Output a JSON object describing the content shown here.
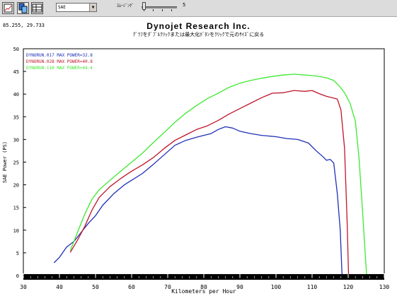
{
  "toolbar": {
    "buttons": [
      {
        "name": "graph-view-button",
        "icon": "graph-icon"
      },
      {
        "name": "copy-button",
        "icon": "copy-icon"
      },
      {
        "name": "table-view-button",
        "icon": "table-icon"
      }
    ],
    "correction_select": {
      "value": "SAE"
    },
    "smoothing_label": "ｽﾑｰｼﾞﾝｸﾞ",
    "smoothing_value": "5",
    "smoothing_fraction": 0.0
  },
  "cursor_readout": "85.255, 29.733",
  "chart_data": {
    "type": "line",
    "title": "Dynojet   Research   Inc.",
    "subtitle": "ｸﾞﾗﾌをﾀﾞﾌﾞﾙｸﾘｯｸまたは最大化ﾎﾞﾀﾝをｸﾘｯｸで元のｻｲｽﾞに戻る",
    "xlabel": "Kilometers per Hour",
    "ylabel": "SAE Power (PS)",
    "xlim": [
      30,
      130
    ],
    "ylim": [
      0,
      50
    ],
    "xticks": [
      30,
      40,
      50,
      60,
      70,
      80,
      90,
      100,
      110,
      120,
      130
    ],
    "yticks": [
      0,
      5,
      10,
      15,
      20,
      25,
      30,
      35,
      40,
      45,
      50
    ],
    "legend_position": "top-left",
    "grid": false,
    "series": [
      {
        "name": "DYNORUN.017  MAX POWER=32.8",
        "color": "#1e2fb8",
        "points": [
          [
            38.5,
            2.8
          ],
          [
            40,
            4.0
          ],
          [
            42,
            6.3
          ],
          [
            44,
            7.5
          ],
          [
            46,
            9.5
          ],
          [
            48,
            11.5
          ],
          [
            50,
            13.2
          ],
          [
            52,
            15.5
          ],
          [
            55,
            18.0
          ],
          [
            58,
            20.0
          ],
          [
            60,
            21.0
          ],
          [
            63,
            22.5
          ],
          [
            66,
            24.5
          ],
          [
            69,
            26.6
          ],
          [
            72,
            28.7
          ],
          [
            75,
            29.8
          ],
          [
            78,
            30.5
          ],
          [
            80,
            30.9
          ],
          [
            82,
            31.3
          ],
          [
            84,
            32.2
          ],
          [
            86,
            32.8
          ],
          [
            88,
            32.5
          ],
          [
            90,
            31.8
          ],
          [
            93,
            31.3
          ],
          [
            96,
            30.9
          ],
          [
            100,
            30.6
          ],
          [
            103,
            30.2
          ],
          [
            106,
            30.0
          ],
          [
            109,
            29.2
          ],
          [
            111,
            27.6
          ],
          [
            113,
            26.2
          ],
          [
            114,
            25.4
          ],
          [
            115,
            25.6
          ],
          [
            116,
            24.8
          ],
          [
            117,
            18.0
          ],
          [
            117.8,
            10.0
          ],
          [
            118.3,
            0.2
          ]
        ]
      },
      {
        "name": "DYNORUN.028  MAX POWER=40.8",
        "color": "#c0152a",
        "points": [
          [
            43,
            5.1
          ],
          [
            45,
            7.8
          ],
          [
            47,
            10.8
          ],
          [
            49,
            14.4
          ],
          [
            51,
            17.2
          ],
          [
            54,
            19.6
          ],
          [
            57,
            21.4
          ],
          [
            60,
            23.0
          ],
          [
            63,
            24.4
          ],
          [
            66,
            26.0
          ],
          [
            69,
            28.0
          ],
          [
            72,
            29.8
          ],
          [
            75,
            31.0
          ],
          [
            78,
            32.2
          ],
          [
            81,
            33.0
          ],
          [
            84,
            34.2
          ],
          [
            87,
            35.6
          ],
          [
            90,
            36.8
          ],
          [
            93,
            38.0
          ],
          [
            96,
            39.2
          ],
          [
            99,
            40.2
          ],
          [
            102,
            40.3
          ],
          [
            105,
            40.8
          ],
          [
            108,
            40.6
          ],
          [
            110,
            40.8
          ],
          [
            112,
            40.1
          ],
          [
            114,
            39.5
          ],
          [
            115.5,
            39.2
          ],
          [
            117,
            38.9
          ],
          [
            118,
            36.5
          ],
          [
            119,
            28.0
          ],
          [
            119.7,
            12.0
          ],
          [
            120.1,
            0.3
          ]
        ]
      },
      {
        "name": "DYNORUN.110  MAX POWER=44.4",
        "color": "#3ee82e",
        "points": [
          [
            43,
            5.5
          ],
          [
            45,
            9.5
          ],
          [
            47,
            13.5
          ],
          [
            49,
            16.8
          ],
          [
            51,
            18.9
          ],
          [
            54,
            21.0
          ],
          [
            57,
            23.0
          ],
          [
            60,
            25.0
          ],
          [
            63,
            27.0
          ],
          [
            66,
            29.3
          ],
          [
            69,
            31.5
          ],
          [
            72,
            33.8
          ],
          [
            75,
            35.8
          ],
          [
            78,
            37.5
          ],
          [
            81,
            39.0
          ],
          [
            84,
            40.2
          ],
          [
            87,
            41.5
          ],
          [
            90,
            42.4
          ],
          [
            93,
            43.0
          ],
          [
            96,
            43.5
          ],
          [
            99,
            43.9
          ],
          [
            102,
            44.2
          ],
          [
            105,
            44.4
          ],
          [
            108,
            44.2
          ],
          [
            111,
            44.0
          ],
          [
            114,
            43.6
          ],
          [
            116,
            43.0
          ],
          [
            117.5,
            41.8
          ],
          [
            119,
            40.3
          ],
          [
            120.5,
            38.0
          ],
          [
            122,
            34.0
          ],
          [
            123,
            26.0
          ],
          [
            124,
            14.0
          ],
          [
            124.7,
            5.0
          ],
          [
            125.1,
            0.3
          ]
        ]
      }
    ]
  }
}
